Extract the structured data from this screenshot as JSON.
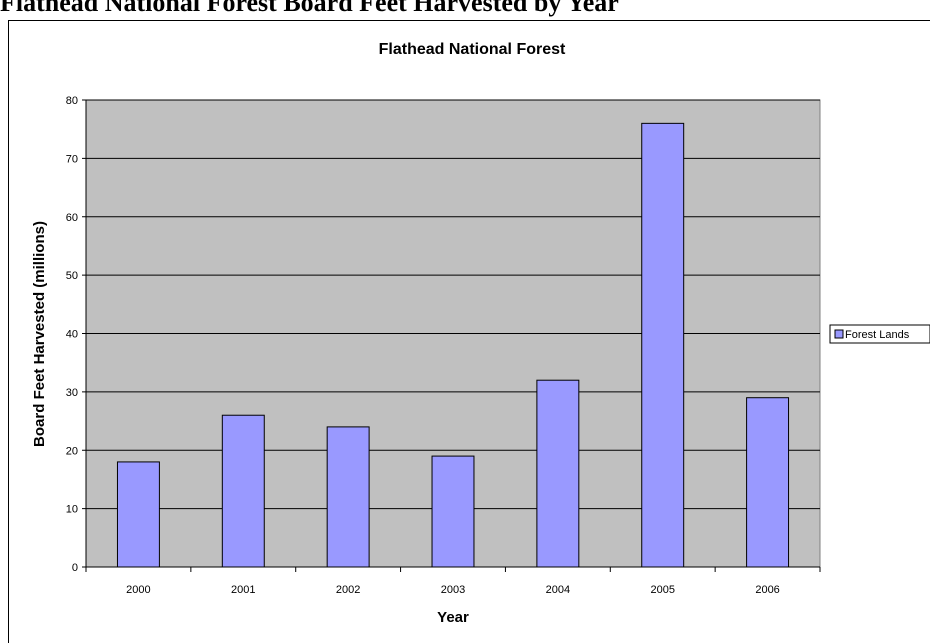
{
  "page": {
    "heading": "Flathead National Forest Board Feet Harvested by Year"
  },
  "colors": {
    "plot_background": "#c0c0c0",
    "bar_fill": "#9999ff",
    "bar_stroke": "#000000",
    "gridline": "#000000"
  },
  "chart_data": {
    "type": "bar",
    "title": "Flathead National Forest",
    "xlabel": "Year",
    "ylabel": "Board Feet Harvested (millions)",
    "categories": [
      "2000",
      "2001",
      "2002",
      "2003",
      "2004",
      "2005",
      "2006"
    ],
    "series": [
      {
        "name": "Forest Lands",
        "values": [
          18,
          26,
          24,
          19,
          32,
          76,
          29
        ]
      }
    ],
    "ylim": [
      0,
      80
    ],
    "yticks": [
      "0",
      "10",
      "20",
      "30",
      "40",
      "50",
      "60",
      "70",
      "80"
    ],
    "grid": true,
    "legend_position": "right"
  }
}
